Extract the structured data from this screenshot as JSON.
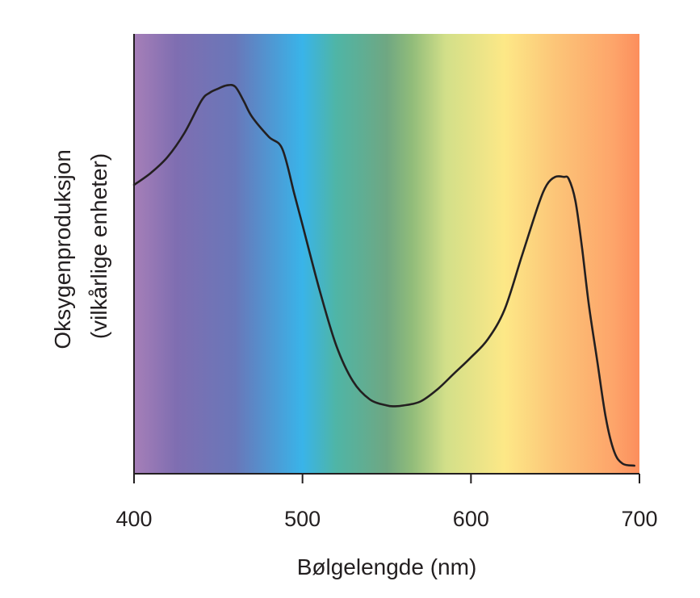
{
  "chart_data": {
    "type": "line",
    "title": "",
    "xlabel": "Bølgelengde (nm)",
    "ylabel_line1": "Oksygenproduksjon",
    "ylabel_line2": "(vilkårlige enheter)",
    "xlim": [
      400,
      700
    ],
    "ylim": [
      0,
      100
    ],
    "x_ticks": [
      400,
      500,
      600,
      700
    ],
    "x_tick_labels": [
      "400",
      "500",
      "600",
      "700"
    ],
    "grid": false,
    "legend": "none",
    "background": "visible light spectrum gradient",
    "series": [
      {
        "x": [
          400,
          410,
          420,
          430,
          440,
          445,
          450,
          455,
          460,
          465,
          470,
          480,
          488,
          495,
          500,
          510,
          520,
          530,
          540,
          550,
          555,
          560,
          570,
          580,
          590,
          600,
          610,
          620,
          630,
          640,
          645,
          650,
          655,
          658,
          662,
          666,
          670,
          675,
          680,
          685,
          690,
          697
        ],
        "y": [
          70,
          73,
          77,
          83,
          91,
          93,
          94,
          94.8,
          94.5,
          91,
          87,
          82,
          79,
          68,
          60,
          44,
          30,
          21,
          16.5,
          15,
          14.8,
          15,
          16,
          19,
          23,
          27,
          31.5,
          39,
          52,
          65,
          70,
          72,
          72,
          71.5,
          66,
          54,
          40,
          26,
          12,
          3.5,
          0.5,
          0
        ]
      }
    ],
    "colors": {
      "line": "#231f20",
      "axis": "#231f20",
      "spectrum": [
        {
          "nm": 400,
          "color": "#a67fb8"
        },
        {
          "nm": 425,
          "color": "#7f6eb1"
        },
        {
          "nm": 460,
          "color": "#6977b9"
        },
        {
          "nm": 500,
          "color": "#39b4e9"
        },
        {
          "nm": 520,
          "color": "#4fb5a6"
        },
        {
          "nm": 550,
          "color": "#6fa782"
        },
        {
          "nm": 565,
          "color": "#91bc7a"
        },
        {
          "nm": 585,
          "color": "#d2df89"
        },
        {
          "nm": 620,
          "color": "#fde887"
        },
        {
          "nm": 650,
          "color": "#fcc578"
        },
        {
          "nm": 685,
          "color": "#fda46a"
        },
        {
          "nm": 700,
          "color": "#fc8e5c"
        }
      ]
    }
  }
}
